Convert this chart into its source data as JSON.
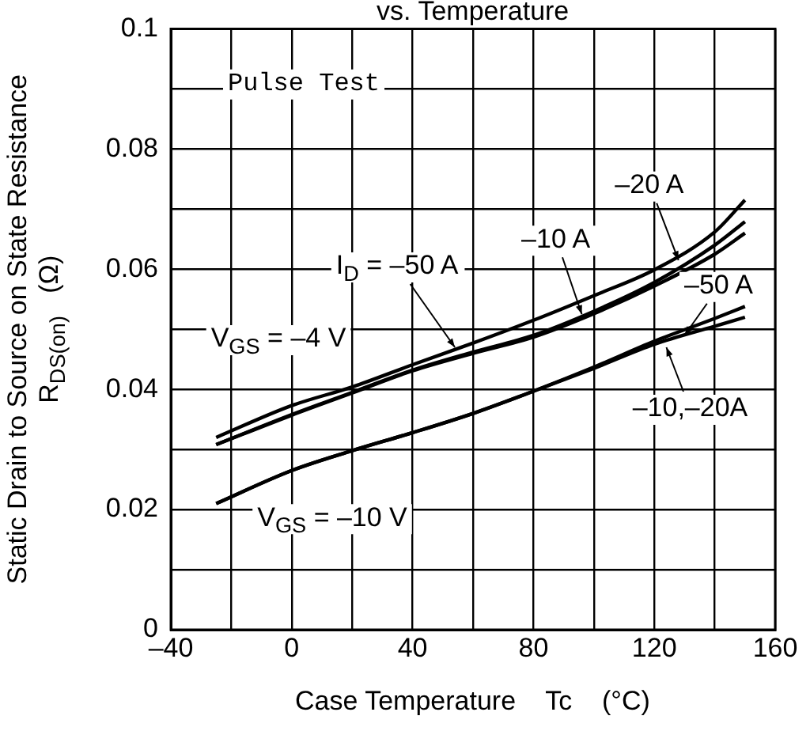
{
  "chart_data": {
    "type": "line",
    "title": "vs. Temperature",
    "xlabel": "Case Temperature    Tc    (°C)",
    "ylabel": "Static Drain to Source on State Resistance\nR$_{DS(on)}$   (Ω)",
    "xlim": [
      -40,
      160
    ],
    "xticks": [
      {
        "value": -40,
        "label": "–40"
      },
      {
        "value": -20,
        "label": null
      },
      0,
      {
        "value": 20,
        "label": null
      },
      40,
      {
        "value": 60,
        "label": null
      },
      80,
      {
        "value": 100,
        "label": null
      },
      120,
      {
        "value": 140,
        "label": null
      },
      160
    ],
    "ylim": [
      0,
      0.1
    ],
    "yticks": [
      0,
      {
        "value": 0.01,
        "label": null
      },
      0.02,
      {
        "value": 0.03,
        "label": null
      },
      0.04,
      {
        "value": 0.05,
        "label": null
      },
      0.06,
      {
        "value": 0.07,
        "label": null
      },
      0.08,
      {
        "value": 0.09,
        "label": null
      },
      0.1
    ],
    "grid": true,
    "legend": false,
    "marker": "none",
    "line_style": "solid",
    "x": [
      -25,
      0,
      20,
      40,
      60,
      80,
      100,
      120,
      140,
      150
    ],
    "series": [
      {
        "color": "#000000",
        "values": [
          0.032,
          0.0373,
          0.0404,
          0.0441,
          0.0477,
          0.0515,
          0.0556,
          0.0599,
          0.0662,
          0.0715
        ]
      },
      {
        "color": "#000000",
        "values": [
          0.0308,
          0.0358,
          0.0395,
          0.0432,
          0.0462,
          0.049,
          0.053,
          0.0578,
          0.064,
          0.0679
        ]
      },
      {
        "color": "#000000",
        "values": [
          0.0308,
          0.0357,
          0.0394,
          0.0431,
          0.046,
          0.0487,
          0.0526,
          0.0572,
          0.0625,
          0.066
        ]
      },
      {
        "color": "#000000",
        "values": [
          0.021,
          0.0265,
          0.0298,
          0.0328,
          0.036,
          0.0397,
          0.0437,
          0.048,
          0.0518,
          0.0538
        ]
      },
      {
        "color": "#000000",
        "values": [
          0.021,
          0.0265,
          0.0298,
          0.0328,
          0.036,
          0.0397,
          0.0435,
          0.0475,
          0.0505,
          0.052
        ]
      }
    ],
    "annotations": [
      "Pulse Test",
      {
        "text": "–20 A",
        "x": 128,
        "y": 0.0615
      },
      {
        "text": "–10 A",
        "x": 96,
        "y": 0.0525
      },
      {
        "text": "I$_{D}$ = –50 A",
        "x": 54,
        "y": 0.047
      },
      "V$_{GS}$ = –4 V",
      {
        "text": "–50 A",
        "x": 130,
        "y": 0.049
      },
      {
        "text": "–10,–20A",
        "x": 124,
        "y": 0.047
      },
      "V$_{GS}$ = –10 V"
    ]
  }
}
